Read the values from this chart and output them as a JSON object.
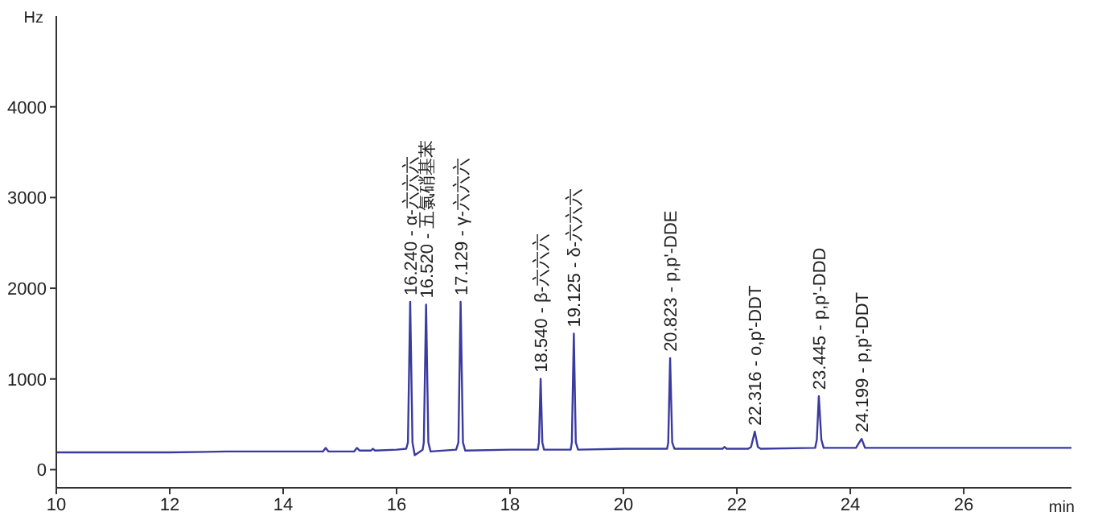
{
  "chart_data": {
    "type": "line",
    "xlabel": "min",
    "ylabel": "Hz",
    "xlim": [
      10,
      27.9
    ],
    "xticks": [
      10,
      12,
      14,
      16,
      18,
      20,
      22,
      24,
      26
    ],
    "ylim": [
      -200,
      5000
    ],
    "yticks": [
      0,
      1000,
      2000,
      3000,
      4000
    ],
    "grid": false,
    "legend": false,
    "marker": "none",
    "line_style": "solid",
    "series": [
      {
        "color": "#3a3aa0",
        "x": [
          10,
          11,
          12,
          13,
          14,
          14.4,
          14.7,
          14.75,
          14.8,
          15.25,
          15.3,
          15.35,
          15.55,
          15.58,
          15.62,
          16.0,
          16.17,
          16.2,
          16.24,
          16.28,
          16.32,
          16.46,
          16.48,
          16.52,
          16.56,
          16.6,
          17.05,
          17.09,
          17.129,
          17.17,
          17.21,
          18.0,
          18.49,
          18.51,
          18.54,
          18.57,
          18.6,
          19.07,
          19.09,
          19.125,
          19.16,
          19.2,
          20.0,
          20.77,
          20.79,
          20.823,
          20.86,
          20.9,
          21.75,
          21.78,
          21.82,
          22.2,
          22.25,
          22.316,
          22.37,
          22.42,
          23.38,
          23.41,
          23.445,
          23.49,
          23.53,
          24.1,
          24.199,
          24.26,
          25,
          26,
          27.9
        ],
        "values": [
          190,
          190,
          190,
          200,
          200,
          200,
          200,
          240,
          200,
          200,
          240,
          210,
          210,
          230,
          210,
          220,
          230,
          300,
          1850,
          300,
          160,
          220,
          300,
          1820,
          300,
          200,
          220,
          300,
          1850,
          300,
          210,
          220,
          220,
          300,
          1000,
          300,
          220,
          220,
          300,
          1500,
          300,
          220,
          230,
          230,
          300,
          1230,
          300,
          230,
          230,
          250,
          230,
          230,
          250,
          420,
          250,
          230,
          240,
          330,
          810,
          330,
          240,
          240,
          340,
          240,
          240,
          240,
          240
        ]
      }
    ],
    "annotations": [
      {
        "text": "16.240 - α-六六六",
        "x": 16.24,
        "y": 1850
      },
      {
        "text": "16.520 - 五氯硝基苯",
        "x": 16.52,
        "y": 1820
      },
      {
        "text": "17.129 - γ-六六六",
        "x": 17.129,
        "y": 1850
      },
      {
        "text": "18.540 - β-六六六",
        "x": 18.54,
        "y": 1000
      },
      {
        "text": "19.125 - δ-六六六",
        "x": 19.125,
        "y": 1500
      },
      {
        "text": "20.823 - p,p'-DDE",
        "x": 20.823,
        "y": 1230
      },
      {
        "text": "22.316 - o,p'-DDT",
        "x": 22.316,
        "y": 415
      },
      {
        "text": "23.445 - p,p'-DDD",
        "x": 23.445,
        "y": 810
      },
      {
        "text": "24.199 - p,p'-DDT",
        "x": 24.199,
        "y": 340
      }
    ]
  }
}
